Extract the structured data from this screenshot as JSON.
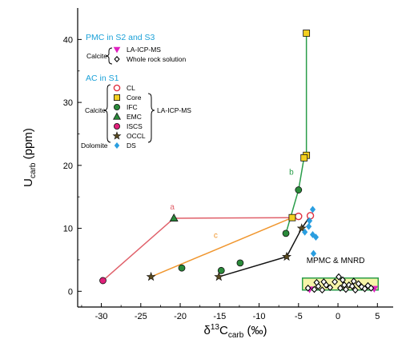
{
  "chart_data": {
    "type": "scatter",
    "xlabel_main": "δ",
    "xlabel_sup": "13",
    "xlabel_rest": "C",
    "xlabel_sub": "carb",
    "xlabel_unit": " (‰)",
    "ylabel_main": "U",
    "ylabel_sub": "carb",
    "ylabel_unit": " (ppm)",
    "xlim": [
      -33,
      7
    ],
    "ylim": [
      -2.5,
      45
    ],
    "xticks": [
      -30,
      -25,
      -20,
      -15,
      -10,
      -5,
      0,
      5
    ],
    "yticks": [
      0,
      10,
      20,
      30,
      40
    ],
    "grid": false,
    "lines": [
      {
        "label": "a",
        "color": "#e0606a",
        "points": [
          [
            -29.8,
            1.7
          ],
          [
            -20.8,
            11.6
          ],
          [
            -5.8,
            11.7
          ]
        ],
        "label_pos": [
          -21,
          13
        ]
      },
      {
        "label": "b",
        "color": "#2a9d4a",
        "points": [
          [
            -6.6,
            9.2
          ],
          [
            -5.0,
            16.1
          ],
          [
            -4.3,
            21.2
          ],
          [
            -4.0,
            21.6
          ],
          [
            -4.0,
            41.0
          ]
        ],
        "label_pos": [
          -5.9,
          18.5
        ]
      },
      {
        "label": "c",
        "color": "#f0962e",
        "points": [
          [
            -23.7,
            2.3
          ],
          [
            -5.8,
            11.7
          ]
        ],
        "label_pos": [
          -15.5,
          8.5
        ]
      },
      {
        "label": "",
        "color": "#111111",
        "points": [
          [
            -15.1,
            2.3
          ],
          [
            -6.5,
            5.5
          ],
          [
            -4.6,
            10.0
          ],
          [
            -3.5,
            12.0
          ]
        ],
        "label_pos": null
      }
    ],
    "series": [
      {
        "name": "CL",
        "marker": "circle-open",
        "color": "#e03040",
        "points": [
          [
            -5.0,
            11.9
          ],
          [
            -3.5,
            12.0
          ]
        ]
      },
      {
        "name": "Core",
        "marker": "square",
        "color": "#f3d020",
        "points": [
          [
            -4.0,
            41.0
          ],
          [
            -4.0,
            21.6
          ],
          [
            -4.3,
            21.2
          ],
          [
            -5.8,
            11.7
          ]
        ]
      },
      {
        "name": "IFC",
        "marker": "circle",
        "color": "#2a8a3a",
        "points": [
          [
            -5.0,
            16.1
          ],
          [
            -6.6,
            9.2
          ],
          [
            -12.4,
            4.5
          ],
          [
            -14.8,
            3.3
          ],
          [
            -19.8,
            3.7
          ]
        ]
      },
      {
        "name": "EMC",
        "marker": "triangle",
        "color": "#2a8a3a",
        "points": [
          [
            -20.8,
            11.6
          ]
        ]
      },
      {
        "name": "ISCS",
        "marker": "circle",
        "color": "#e0207a",
        "points": [
          [
            -29.8,
            1.7
          ]
        ]
      },
      {
        "name": "OCCL",
        "marker": "star",
        "color": "#5a4a20",
        "points": [
          [
            -23.7,
            2.3
          ],
          [
            -15.1,
            2.3
          ],
          [
            -6.5,
            5.5
          ],
          [
            -4.6,
            10.0
          ]
        ]
      },
      {
        "name": "DS",
        "marker": "diamond",
        "color": "#2a9ee0",
        "points": [
          [
            -3.2,
            13.0
          ],
          [
            -3.6,
            11.2
          ],
          [
            -4.2,
            9.4
          ],
          [
            -3.7,
            10.3
          ],
          [
            -3.2,
            9.0
          ],
          [
            -2.8,
            8.6
          ],
          [
            -3.1,
            6.0
          ]
        ]
      },
      {
        "name": "LA-ICP-MS",
        "marker": "triangle-down",
        "color": "#e020c0",
        "points": [
          [
            -3.6,
            0.3
          ],
          [
            4.6,
            0.4
          ]
        ]
      },
      {
        "name": "Whole rock solution",
        "marker": "diamond-open",
        "color": "#000000",
        "points": [
          [
            -3.8,
            0.5
          ],
          [
            -3.0,
            0.3
          ],
          [
            -2.5,
            0.8
          ],
          [
            -2.0,
            0.2
          ],
          [
            -1.5,
            1.0
          ],
          [
            -1.0,
            0.6
          ],
          [
            -0.4,
            1.5
          ],
          [
            0.1,
            2.3
          ],
          [
            0.3,
            0.5
          ],
          [
            0.6,
            1.8
          ],
          [
            1.0,
            0.3
          ],
          [
            1.4,
            1.0
          ],
          [
            1.8,
            0.8
          ],
          [
            2.2,
            0.2
          ],
          [
            2.6,
            1.2
          ],
          [
            3.0,
            0.7
          ],
          [
            3.4,
            0.4
          ],
          [
            3.8,
            0.9
          ],
          [
            4.2,
            0.5
          ],
          [
            -2.7,
            1.4
          ],
          [
            -1.8,
            1.5
          ],
          [
            0.8,
            1.0
          ],
          [
            2.0,
            1.6
          ]
        ]
      }
    ],
    "box": {
      "x": [
        -4.5,
        5.1
      ],
      "y": [
        0.2,
        2.1
      ],
      "fill": "#f6f4a8",
      "stroke": "#2a9d4a"
    },
    "box_label": "MPMC & MNRD",
    "box_label_pos": [
      -0.3,
      4.5
    ],
    "legend": {
      "pmc_header": "PMC in S2 and S3",
      "pmc_mineral": "Calcite",
      "ac_header": "AC in S1",
      "ac_calcite": "Calcite",
      "ac_dolomite": "Dolomite",
      "method": "LA-ICP-MS"
    }
  }
}
